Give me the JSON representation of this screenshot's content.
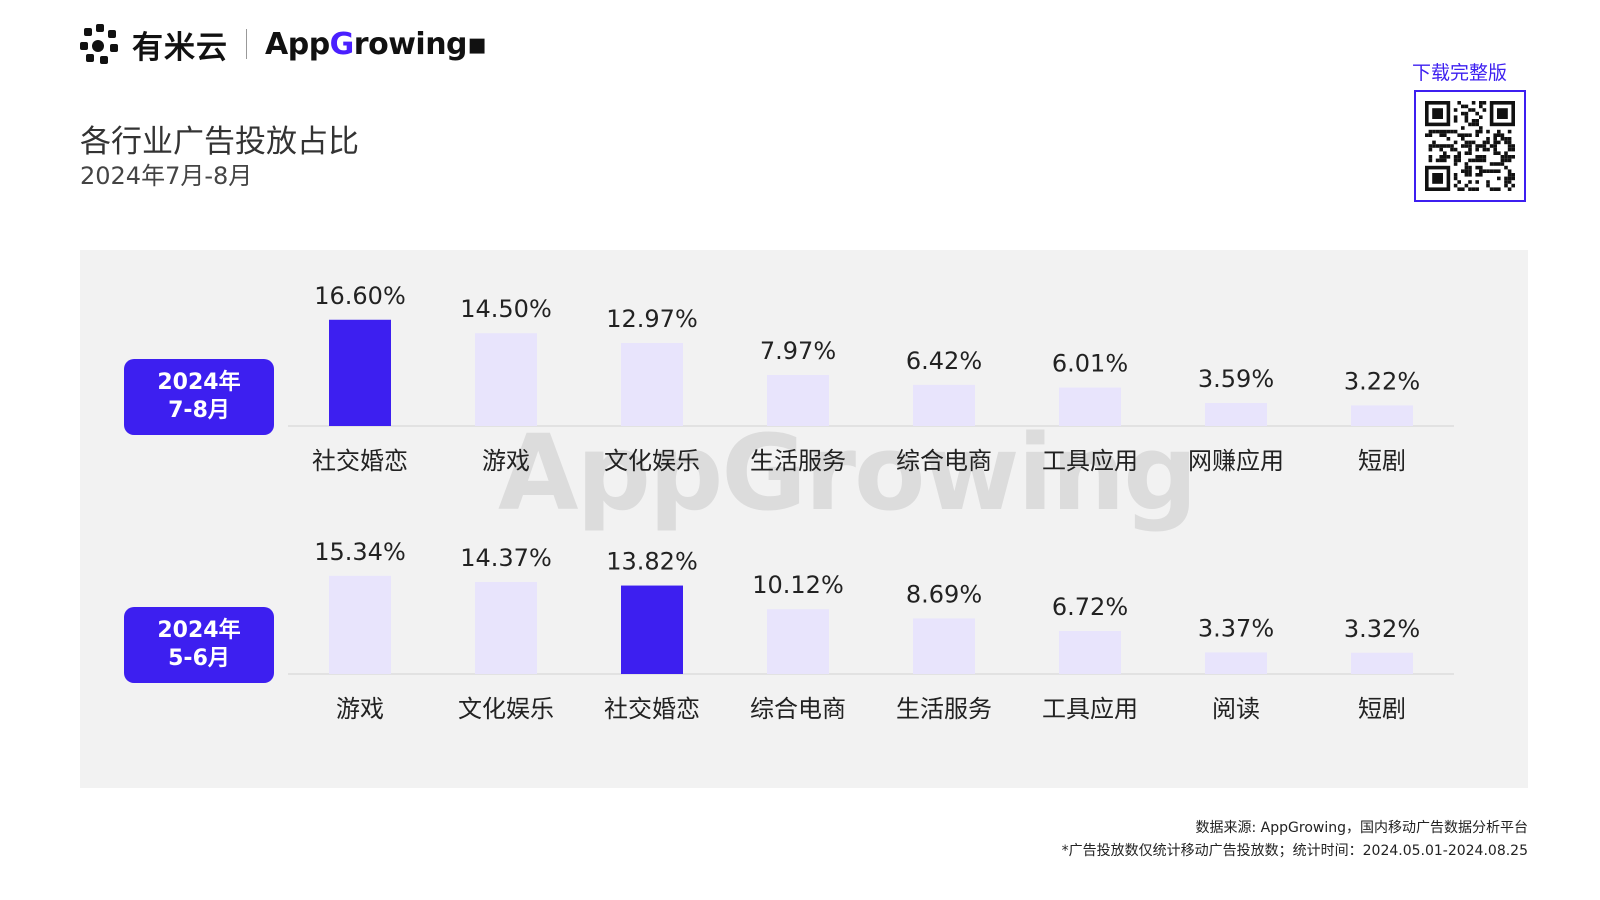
{
  "header": {
    "logo_cn": "有米云",
    "logo_en_prefix": "App",
    "logo_en_g": "G",
    "logo_en_suffix": "rowing",
    "title": "各行业广告投放占比",
    "subtitle": "2024年7月-8月",
    "download_label": "下载完整版"
  },
  "watermark": "AppGrowing",
  "colors": {
    "accent": "#3d1ff0",
    "bar_light": "#e8e4fc",
    "panel": "#f2f2f2"
  },
  "chart_data": [
    {
      "type": "bar",
      "period": [
        "2024年",
        "7-8月"
      ],
      "categories": [
        "社交婚恋",
        "游戏",
        "文化娱乐",
        "生活服务",
        "综合电商",
        "工具应用",
        "网赚应用",
        "短剧"
      ],
      "values": [
        16.6,
        14.5,
        12.97,
        7.97,
        6.42,
        6.01,
        3.59,
        3.22
      ],
      "labels": [
        "16.60%",
        "14.50%",
        "12.97%",
        "7.97%",
        "6.42%",
        "6.01%",
        "3.59%",
        "3.22%"
      ],
      "highlight": "社交婚恋",
      "ylim": [
        0,
        20
      ]
    },
    {
      "type": "bar",
      "period": [
        "2024年",
        "5-6月"
      ],
      "categories": [
        "游戏",
        "文化娱乐",
        "社交婚恋",
        "综合电商",
        "生活服务",
        "工具应用",
        "阅读",
        "短剧"
      ],
      "values": [
        15.34,
        14.37,
        13.82,
        10.12,
        8.69,
        6.72,
        3.37,
        3.32
      ],
      "labels": [
        "15.34%",
        "14.37%",
        "13.82%",
        "10.12%",
        "8.69%",
        "6.72%",
        "3.37%",
        "3.32%"
      ],
      "highlight": "社交婚恋",
      "ylim": [
        0,
        20
      ]
    }
  ],
  "footer": {
    "source": "数据来源: AppGrowing，国内移动广告数据分析平台",
    "note": "*广告投放数仅统计移动广告投放数；统计时间：2024.05.01-2024.08.25"
  }
}
